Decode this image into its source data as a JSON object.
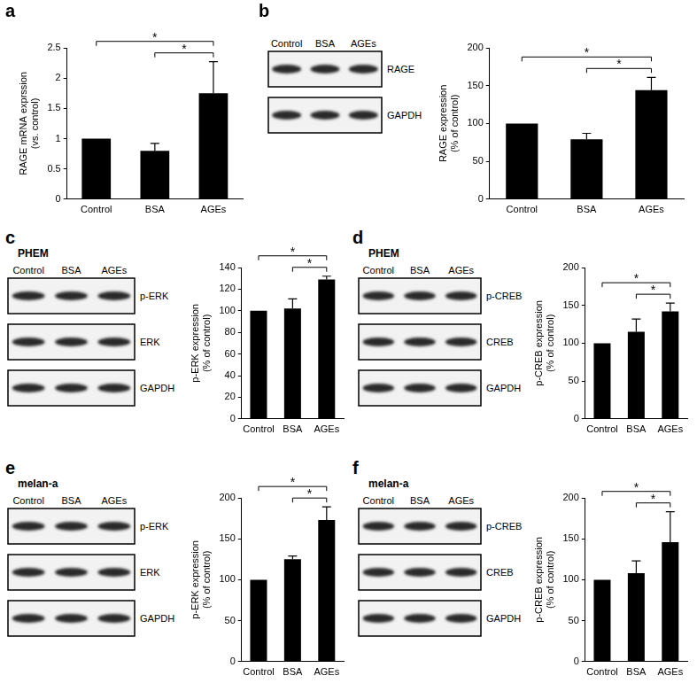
{
  "chart_data": [
    {
      "panel": "a",
      "type": "bar",
      "categories": [
        "Control",
        "BSA",
        "AGEs"
      ],
      "values": [
        1,
        0.8,
        1.75
      ],
      "errors": [
        0,
        0.12,
        0.52
      ],
      "color": "#000000",
      "ylabel": [
        "RAGE mRNA exprssion",
        "(vs. control)"
      ],
      "ylim": [
        0,
        2.5
      ],
      "yticks": [
        0,
        0.5,
        1,
        1.5,
        2,
        2.5
      ],
      "grid": false,
      "significance": [
        {
          "between": [
            "Control",
            "AGEs"
          ],
          "label": "*"
        },
        {
          "between": [
            "BSA",
            "AGEs"
          ],
          "label": "*"
        }
      ]
    },
    {
      "panel": "b",
      "blot": {
        "lanes": [
          "Control",
          "BSA",
          "AGEs"
        ],
        "rows": [
          "RAGE",
          "GAPDH"
        ]
      },
      "type": "bar",
      "categories": [
        "Control",
        "BSA",
        "AGEs"
      ],
      "values": [
        100,
        79,
        144
      ],
      "errors": [
        0,
        8,
        17
      ],
      "color": "#000000",
      "ylabel": [
        "RAGE expression",
        "(% of control)"
      ],
      "ylim": [
        0,
        200
      ],
      "yticks": [
        0,
        50,
        100,
        150,
        200
      ],
      "grid": false,
      "significance": [
        {
          "between": [
            "Control",
            "AGEs"
          ],
          "label": "*"
        },
        {
          "between": [
            "BSA",
            "AGEs"
          ],
          "label": "*"
        }
      ]
    },
    {
      "panel": "c",
      "blot": {
        "title": "PHEM",
        "lanes": [
          "Control",
          "BSA",
          "AGEs"
        ],
        "rows": [
          "p-ERK",
          "ERK",
          "GAPDH"
        ]
      },
      "type": "bar",
      "categories": [
        "Control",
        "BSA",
        "AGEs"
      ],
      "values": [
        100,
        102,
        129
      ],
      "errors": [
        0,
        9,
        3
      ],
      "color": "#000000",
      "ylabel": [
        "p-ERK expression",
        "(% of control)"
      ],
      "ylim": [
        0,
        140
      ],
      "yticks": [
        0,
        20,
        40,
        60,
        80,
        100,
        120,
        140
      ],
      "grid": false,
      "significance": [
        {
          "between": [
            "Control",
            "AGEs"
          ],
          "label": "*"
        },
        {
          "between": [
            "BSA",
            "AGEs"
          ],
          "label": "*"
        }
      ]
    },
    {
      "panel": "d",
      "blot": {
        "title": "PHEM",
        "lanes": [
          "Control",
          "BSA",
          "AGEs"
        ],
        "rows": [
          "p-CREB",
          "CREB",
          "GAPDH"
        ]
      },
      "type": "bar",
      "categories": [
        "Control",
        "BSA",
        "AGEs"
      ],
      "values": [
        100,
        115,
        142
      ],
      "errors": [
        0,
        17,
        11
      ],
      "color": "#000000",
      "ylabel": [
        "p-CREB expression",
        "(% of control)"
      ],
      "ylim": [
        0,
        200
      ],
      "yticks": [
        0,
        50,
        100,
        150,
        200
      ],
      "grid": false,
      "significance": [
        {
          "between": [
            "Control",
            "AGEs"
          ],
          "label": "*"
        },
        {
          "between": [
            "BSA",
            "AGEs"
          ],
          "label": "*"
        }
      ]
    },
    {
      "panel": "e",
      "blot": {
        "title": "melan-a",
        "lanes": [
          "Control",
          "BSA",
          "AGEs"
        ],
        "rows": [
          "p-ERK",
          "ERK",
          "GAPDH"
        ]
      },
      "type": "bar",
      "categories": [
        "Control",
        "BSA",
        "AGEs"
      ],
      "values": [
        100,
        125,
        173
      ],
      "errors": [
        0,
        4,
        16
      ],
      "color": "#000000",
      "ylabel": [
        "p-ERK expression",
        "(% of control)"
      ],
      "ylim": [
        0,
        200
      ],
      "yticks": [
        0,
        50,
        100,
        150,
        200
      ],
      "grid": false,
      "significance": [
        {
          "between": [
            "Control",
            "AGEs"
          ],
          "label": "*"
        },
        {
          "between": [
            "BSA",
            "AGEs"
          ],
          "label": "*"
        }
      ]
    },
    {
      "panel": "f",
      "blot": {
        "title": "melan-a",
        "lanes": [
          "Control",
          "BSA",
          "AGEs"
        ],
        "rows": [
          "p-CREB",
          "CREB",
          "GAPDH"
        ]
      },
      "type": "bar",
      "categories": [
        "Control",
        "BSA",
        "AGEs"
      ],
      "values": [
        100,
        108,
        146
      ],
      "errors": [
        0,
        15,
        37
      ],
      "color": "#000000",
      "ylabel": [
        "p-CREB expression",
        "(% of control)"
      ],
      "ylim": [
        0,
        200
      ],
      "yticks": [
        0,
        50,
        100,
        150,
        200
      ],
      "grid": false,
      "significance": [
        {
          "between": [
            "Control",
            "AGEs"
          ],
          "label": "*"
        },
        {
          "between": [
            "BSA",
            "AGEs"
          ],
          "label": "*"
        }
      ]
    }
  ]
}
